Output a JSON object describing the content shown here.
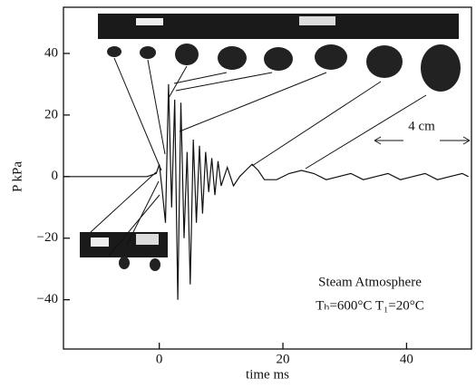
{
  "chart_data": {
    "type": "line",
    "x_label": "time ms",
    "y_label": "P kPa",
    "annotations": [
      "Steam Atmosphere",
      "Tₕ=600°C T₁=20°C",
      "4 cm"
    ],
    "x": [
      -15.5,
      -2,
      -0.5,
      0,
      0.5,
      1,
      1.5,
      2,
      2.5,
      3,
      3.5,
      4,
      4.5,
      5,
      5.5,
      6,
      6.5,
      7,
      7.5,
      8,
      8.5,
      9,
      9.5,
      10,
      11,
      12,
      13,
      14,
      15,
      16,
      17,
      19,
      21,
      23,
      25,
      27,
      29,
      31,
      33,
      35,
      37,
      39,
      41,
      43,
      45,
      47,
      49,
      50
    ],
    "values": [
      0,
      0,
      1,
      4,
      -5,
      -15,
      30,
      -10,
      25,
      -40,
      24,
      -20,
      8,
      -35,
      12,
      -15,
      10,
      -12,
      8,
      -5,
      6,
      -6,
      5,
      -3,
      3,
      -3,
      0,
      2,
      4,
      2,
      -1,
      -1,
      1,
      2,
      1,
      -1,
      0,
      1,
      -1,
      0,
      1,
      -1,
      0,
      1,
      -1,
      0,
      1,
      0
    ],
    "color": "#111111",
    "xlim": [
      -15.5,
      50.5
    ],
    "ylim": [
      -56,
      55
    ],
    "xticks": [
      0,
      20,
      40
    ],
    "yticks": [
      {
        "value": -40,
        "label": "−40"
      },
      {
        "value": -20,
        "label": "−20"
      },
      0,
      20,
      40
    ]
  }
}
